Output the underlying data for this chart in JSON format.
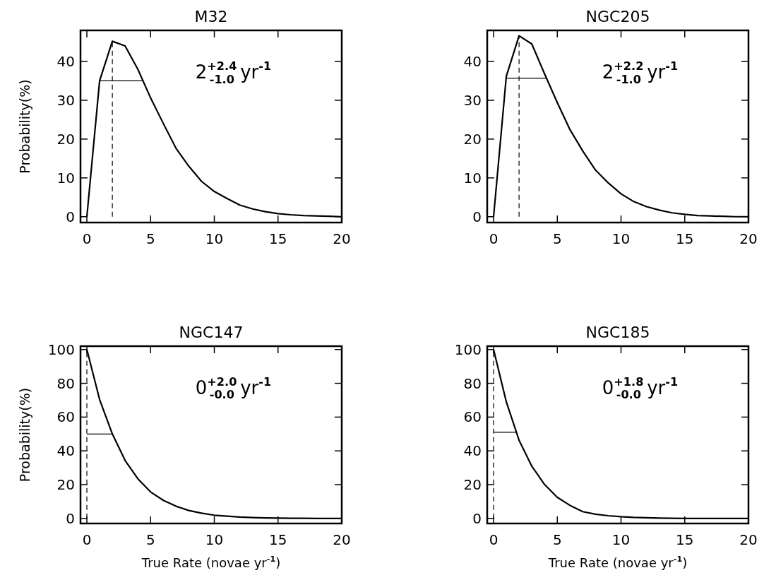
{
  "chart_data": [
    {
      "type": "line",
      "title": "M32",
      "ylabel": "Probability(%)",
      "x": [
        0,
        1,
        2,
        3,
        4,
        5,
        6,
        7,
        8,
        9,
        10,
        11,
        12,
        13,
        14,
        15,
        16,
        17,
        18,
        19,
        20
      ],
      "xlim": [
        -0.5,
        20
      ],
      "ylim": [
        -1.5,
        48
      ],
      "xticks": [
        0,
        5,
        10,
        15,
        20
      ],
      "yticks": [
        0,
        10,
        20,
        30,
        40
      ],
      "annotations": [
        "2$^{+2.4}$$_{-1.0}$ yr$^{-1}$"
      ],
      "series": [
        {
          "color": "#000000",
          "values": [
            0,
            35,
            45.2,
            44,
            38,
            30.6,
            24,
            17.6,
            13,
            9.1,
            6.5,
            4.7,
            3,
            2,
            1.3,
            0.8,
            0.5,
            0.3,
            0.2,
            0.1,
            0
          ]
        },
        {
          "color": "#000000",
          "x": [
            1,
            4.4
          ],
          "values": [
            35,
            35
          ]
        },
        {
          "color": "#000000",
          "x": [
            2,
            2
          ],
          "values": [
            0,
            45.2
          ],
          "line_style": "dashed"
        }
      ]
    },
    {
      "type": "line",
      "title": "NGC205",
      "x": [
        0,
        1,
        2,
        3,
        4,
        5,
        6,
        7,
        8,
        9,
        10,
        11,
        12,
        13,
        14,
        15,
        16,
        17,
        18,
        19,
        20
      ],
      "xlim": [
        -0.5,
        20
      ],
      "ylim": [
        -1.5,
        48
      ],
      "xticks": [
        0,
        5,
        10,
        15,
        20
      ],
      "yticks": [
        0,
        10,
        20,
        30,
        40
      ],
      "annotations": [
        "2$^{+2.2}$$_{-1.0}$ yr$^{-1}$"
      ],
      "series": [
        {
          "color": "#000000",
          "values": [
            0,
            36.2,
            46.6,
            44.5,
            36.8,
            29.4,
            22.4,
            16.9,
            12,
            8.7,
            5.9,
            3.9,
            2.6,
            1.7,
            1,
            0.6,
            0.3,
            0.2,
            0.1,
            0,
            0
          ]
        },
        {
          "color": "#000000",
          "x": [
            1,
            4.2
          ],
          "values": [
            35.7,
            35.7
          ]
        },
        {
          "color": "#000000",
          "x": [
            2,
            2
          ],
          "values": [
            0,
            46.6
          ],
          "line_style": "dashed"
        }
      ]
    },
    {
      "type": "line",
      "title": "NGC147",
      "xlabel": "True Rate (novae yr$^{-1}$)",
      "ylabel": "Probability(%)",
      "x": [
        0,
        1,
        2,
        3,
        4,
        5,
        6,
        7,
        8,
        9,
        10,
        11,
        12,
        13,
        14,
        15,
        16,
        17,
        18,
        19,
        20
      ],
      "xlim": [
        -0.5,
        20
      ],
      "ylim": [
        -3,
        102
      ],
      "xticks": [
        0,
        5,
        10,
        15,
        20
      ],
      "yticks": [
        0,
        20,
        40,
        60,
        80,
        100
      ],
      "annotations": [
        "0$^{+2.0}$$_{-0.0}$ yr$^{-1}$"
      ],
      "series": [
        {
          "color": "#000000",
          "values": [
            100,
            70.4,
            50,
            34.3,
            23.5,
            15.7,
            10.7,
            7.2,
            4.7,
            3.1,
            1.9,
            1.3,
            0.8,
            0.5,
            0.3,
            0.2,
            0.1,
            0.1,
            0,
            0,
            0
          ]
        },
        {
          "color": "#000000",
          "x": [
            0,
            2
          ],
          "values": [
            50,
            50
          ]
        },
        {
          "color": "#000000",
          "x": [
            0,
            0
          ],
          "values": [
            0,
            100
          ],
          "line_style": "dashed"
        }
      ]
    },
    {
      "type": "line",
      "title": "NGC185",
      "xlabel": "True Rate (novae yr$^{-1}$)",
      "x": [
        0,
        1,
        2,
        3,
        4,
        5,
        6,
        7,
        8,
        9,
        10,
        11,
        12,
        13,
        14,
        15,
        16,
        17,
        18,
        19,
        20
      ],
      "xlim": [
        -0.5,
        20
      ],
      "ylim": [
        -3,
        102
      ],
      "xticks": [
        0,
        5,
        10,
        15,
        20
      ],
      "yticks": [
        0,
        20,
        40,
        60,
        80,
        100
      ],
      "annotations": [
        "0$^{+1.8}$$_{-0.0}$ yr$^{-1}$"
      ],
      "series": [
        {
          "color": "#000000",
          "values": [
            100,
            69,
            46.3,
            30.9,
            20.1,
            12.5,
            7.7,
            4,
            2.5,
            1.6,
            1,
            0.6,
            0.4,
            0.2,
            0.1,
            0,
            0,
            0,
            0,
            0,
            0
          ]
        },
        {
          "color": "#000000",
          "x": [
            0,
            1.8
          ],
          "values": [
            51,
            51
          ]
        },
        {
          "color": "#000000",
          "x": [
            0,
            0
          ],
          "values": [
            0,
            100
          ],
          "line_style": "dashed"
        }
      ]
    }
  ]
}
